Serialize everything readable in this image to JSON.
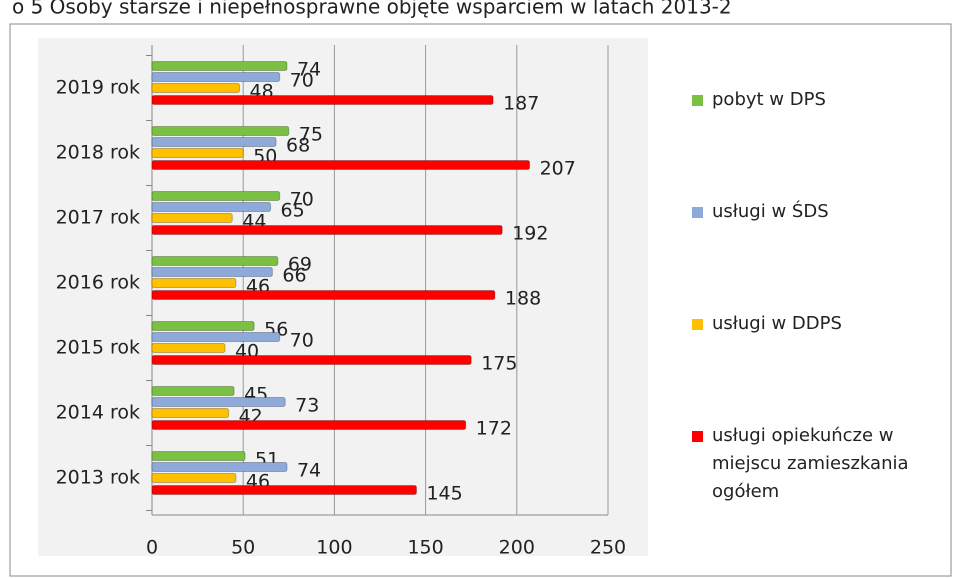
{
  "chart_data": {
    "type": "hbar",
    "title": "o 5 Osoby starsze i niepełnosprawne objęte wsparciem w latach 2013-2",
    "categories": [
      "2013 rok",
      "2014 rok",
      "2015 rok",
      "2016 rok",
      "2017 rok",
      "2018 rok",
      "2019 rok"
    ],
    "series": [
      {
        "name": "pobyt w DPS",
        "color": "#7ac143",
        "values": [
          51,
          45,
          56,
          69,
          70,
          75,
          74
        ]
      },
      {
        "name": "usługi w ŚDS",
        "color": "#8eaadb",
        "values": [
          74,
          73,
          70,
          66,
          65,
          68,
          70
        ]
      },
      {
        "name": "usługi w DDPS",
        "color": "#ffc000",
        "values": [
          46,
          42,
          40,
          46,
          44,
          50,
          48
        ]
      },
      {
        "name": "usługi opiekuńcze w miejscu zamieszkania ogółem",
        "color": "#ff0000",
        "values": [
          145,
          172,
          175,
          188,
          192,
          207,
          187
        ]
      }
    ],
    "xlim": [
      0,
      250
    ],
    "xticks": [
      0,
      50,
      100,
      150,
      200,
      250
    ],
    "grid": true,
    "legend": "right"
  }
}
